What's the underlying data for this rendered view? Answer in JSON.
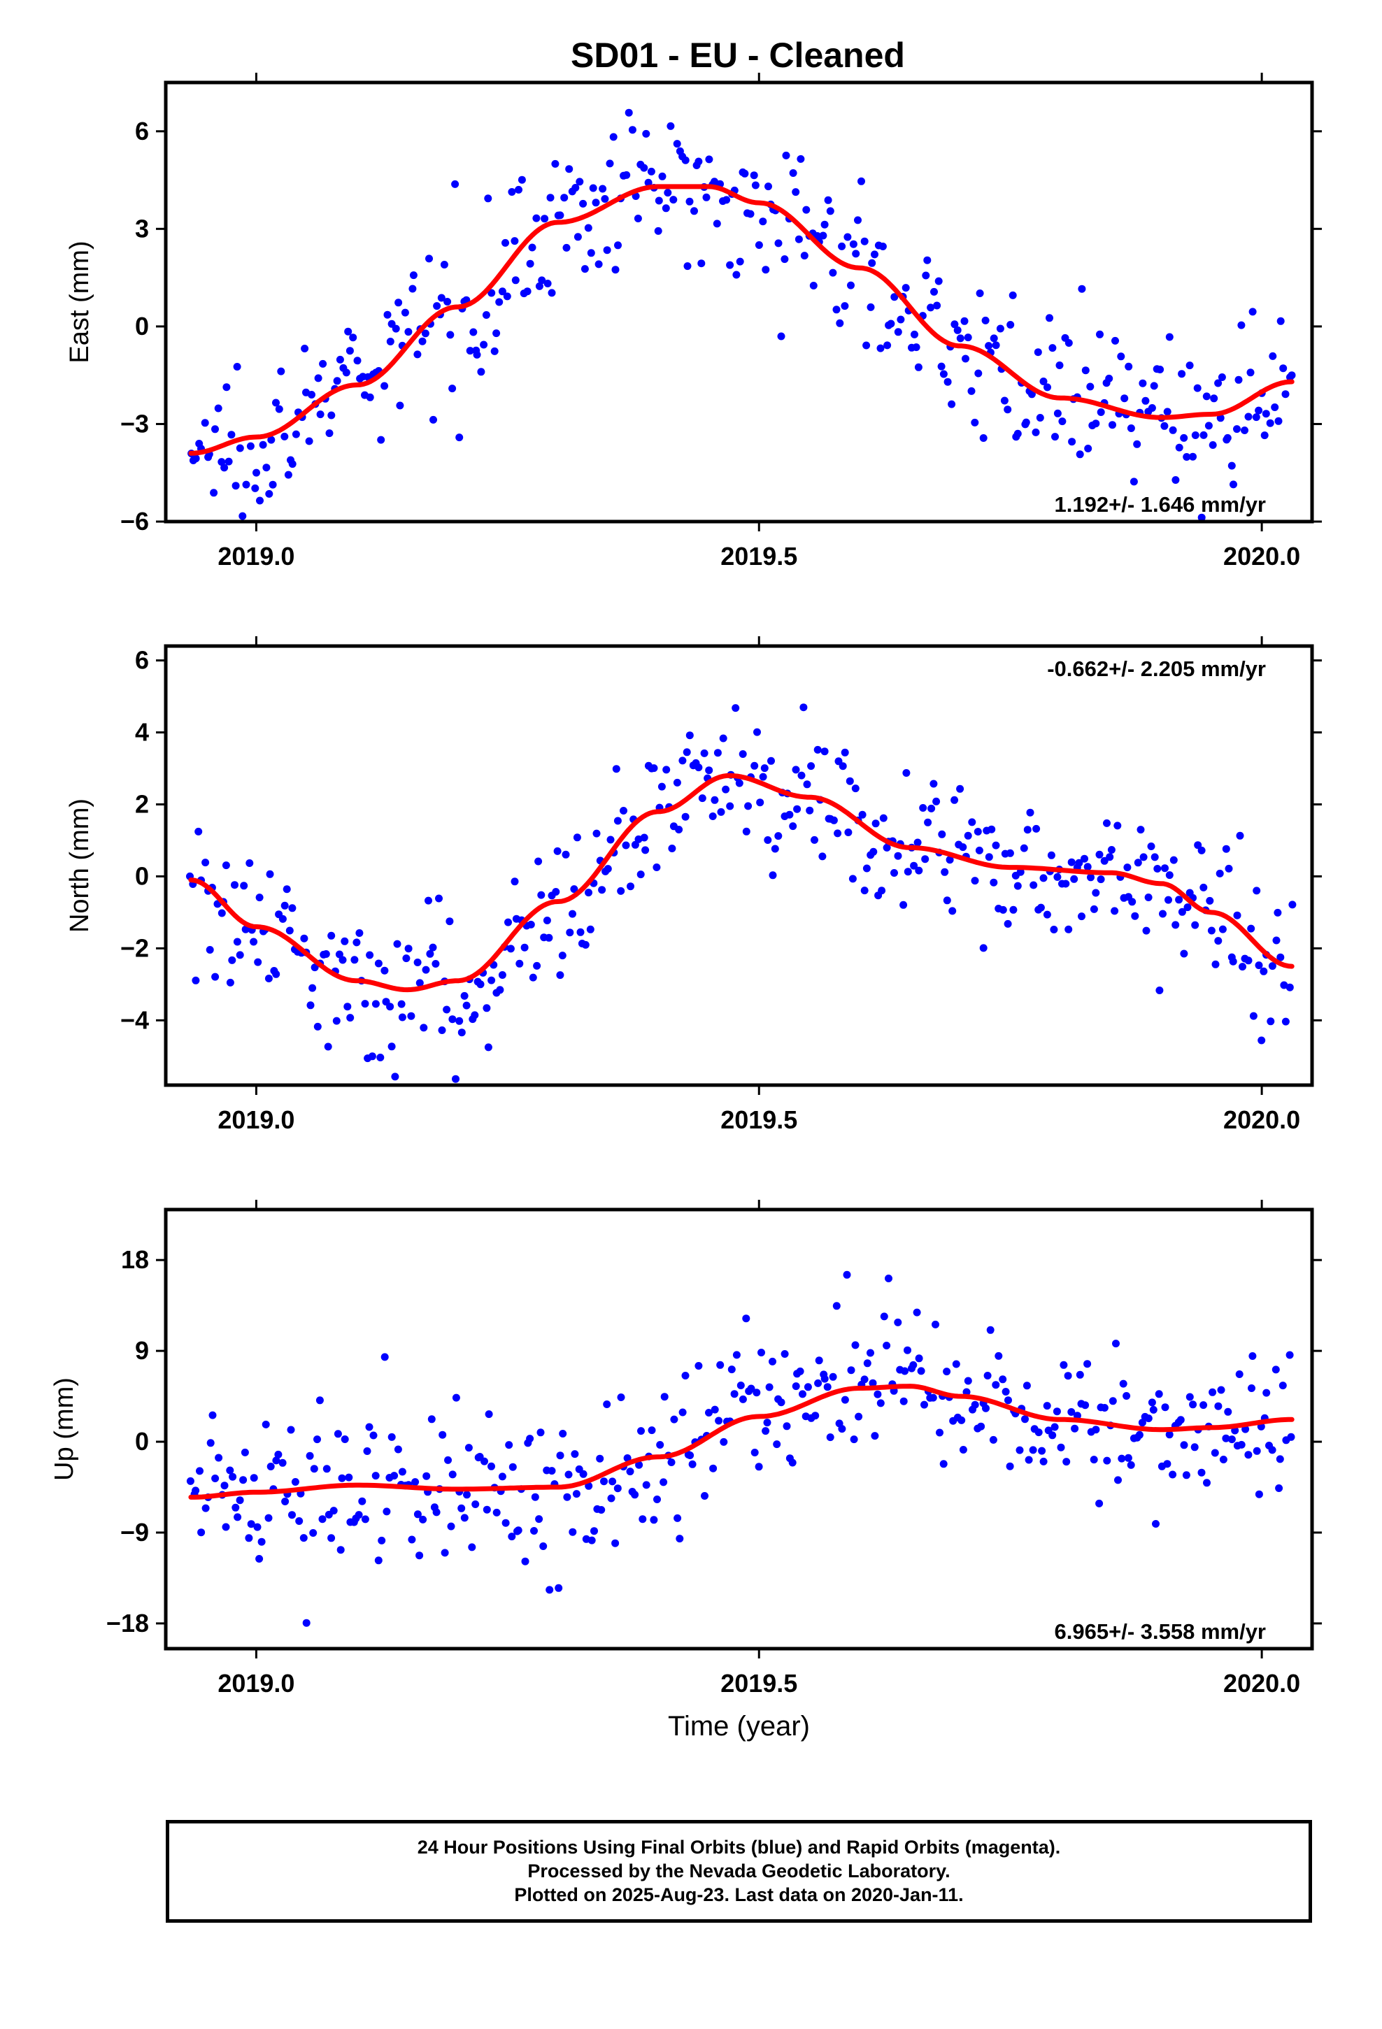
{
  "title": "SD01  - EU - Cleaned",
  "colors": {
    "final_orbits": "#0000ff",
    "fit": "#ff0000",
    "frame": "#000000"
  },
  "chart_data": [
    {
      "type": "scatter",
      "ylabel": "East (mm)",
      "xlabel": "",
      "xlim": [
        2018.91,
        2020.05
      ],
      "ylim": [
        -6,
        7.5
      ],
      "xticks": [
        2019.0,
        2019.5,
        2020.0
      ],
      "xtick_labels": [
        "2019.0",
        "2019.5",
        "2020.0"
      ],
      "yticks": [
        -6,
        -3,
        0,
        3,
        6
      ],
      "ytick_labels": [
        "−6",
        "−3",
        "0",
        "3",
        "6"
      ],
      "rate_text": "1.192+/- 1.646 mm/yr",
      "rate_position": "bottom-right",
      "trend": 1.192,
      "sigma": 1.646,
      "x_start": 2018.935,
      "x_end": 2020.03,
      "fit": {
        "x": [
          2018.935,
          2019.0,
          2019.1,
          2019.2,
          2019.3,
          2019.4,
          2019.45,
          2019.5,
          2019.6,
          2019.7,
          2019.8,
          2019.9,
          2019.95,
          2020.03
        ],
        "y": [
          -3.9,
          -3.4,
          -1.8,
          0.6,
          3.2,
          4.3,
          4.3,
          3.8,
          1.8,
          -0.6,
          -2.2,
          -2.8,
          -2.7,
          -1.7
        ]
      }
    },
    {
      "type": "scatter",
      "ylabel": "North (mm)",
      "xlabel": "",
      "xlim": [
        2018.91,
        2020.05
      ],
      "ylim": [
        -5.8,
        6.4
      ],
      "xticks": [
        2019.0,
        2019.5,
        2020.0
      ],
      "xtick_labels": [
        "2019.0",
        "2019.5",
        "2020.0"
      ],
      "yticks": [
        -4,
        -2,
        0,
        2,
        4,
        6
      ],
      "ytick_labels": [
        "−4",
        "−2",
        "0",
        "2",
        "4",
        "6"
      ],
      "rate_text": "-0.662+/- 2.205 mm/yr",
      "rate_position": "top-right",
      "trend": -0.662,
      "sigma": 2.205,
      "x_start": 2018.935,
      "x_end": 2020.03,
      "fit": {
        "x": [
          2018.935,
          2019.0,
          2019.1,
          2019.15,
          2019.2,
          2019.3,
          2019.4,
          2019.47,
          2019.55,
          2019.65,
          2019.75,
          2019.85,
          2019.9,
          2019.95,
          2020.03
        ],
        "y": [
          -0.1,
          -1.4,
          -2.9,
          -3.15,
          -2.9,
          -0.7,
          1.8,
          2.8,
          2.2,
          0.8,
          0.25,
          0.1,
          -0.2,
          -1.0,
          -2.5
        ]
      }
    },
    {
      "type": "scatter",
      "ylabel": "Up (mm)",
      "xlabel": "Time (year)",
      "xlim": [
        2018.91,
        2020.05
      ],
      "ylim": [
        -20.5,
        23
      ],
      "xticks": [
        2019.0,
        2019.5,
        2020.0
      ],
      "xtick_labels": [
        "2019.0",
        "2019.5",
        "2020.0"
      ],
      "yticks": [
        -18,
        -9,
        0,
        9,
        18
      ],
      "ytick_labels": [
        "−18",
        "−9",
        "0",
        "9",
        "18"
      ],
      "rate_text": "6.965+/- 3.558 mm/yr",
      "rate_position": "bottom-right",
      "trend": 6.965,
      "sigma": 3.558,
      "x_start": 2018.935,
      "x_end": 2020.03,
      "fit": {
        "x": [
          2018.935,
          2019.0,
          2019.1,
          2019.2,
          2019.3,
          2019.4,
          2019.5,
          2019.6,
          2019.65,
          2019.7,
          2019.8,
          2019.9,
          2019.95,
          2020.03
        ],
        "y": [
          -5.5,
          -5.0,
          -4.3,
          -4.7,
          -4.5,
          -1.5,
          2.5,
          5.3,
          5.5,
          4.5,
          2.2,
          1.2,
          1.4,
          2.2
        ]
      }
    }
  ],
  "footer": {
    "line1": "24 Hour Positions Using Final Orbits (blue) and Rapid Orbits (magenta).",
    "line2": "Processed by the Nevada Geodetic Laboratory.",
    "line3": "Plotted on 2025-Aug-23. Last data on 2020-Jan-11."
  }
}
